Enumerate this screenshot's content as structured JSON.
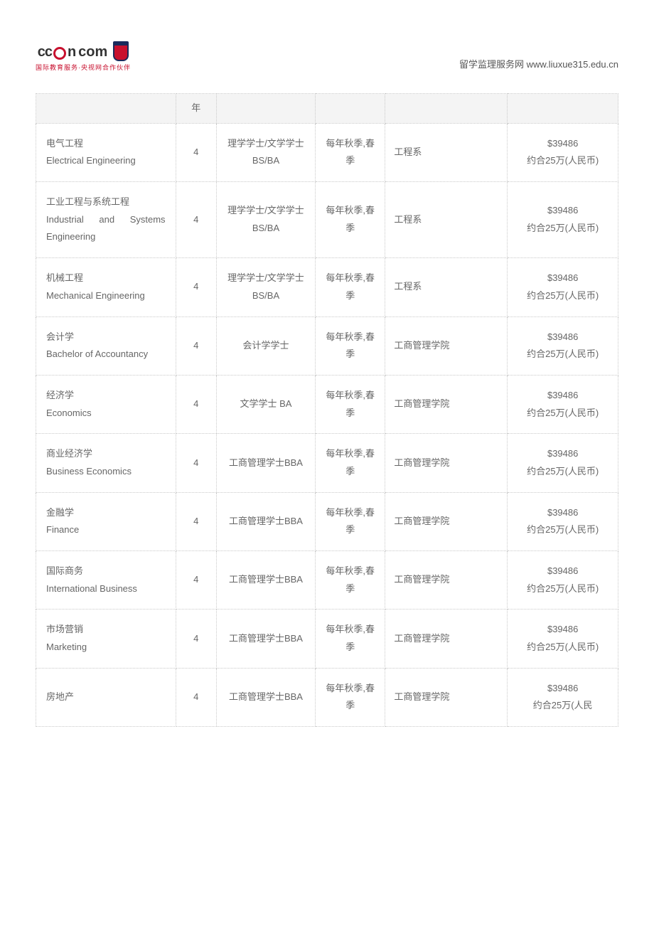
{
  "header": {
    "logo_text_left": "cc",
    "logo_text_mid": "n",
    "logo_text_right": "com",
    "logo_subtext": "国际教育服务·央视网合作伙伴",
    "right_text": "留学监理服务网 www.liuxue315.edu.cn"
  },
  "table": {
    "header_cell": "年",
    "col_widths": [
      "24%",
      "7%",
      "17%",
      "12%",
      "21%",
      "19%"
    ],
    "border_color": "#c9c9c9",
    "header_bg": "#f4f4f4",
    "text_color": "#666666",
    "font_size_pt": 10,
    "rows": [
      {
        "name_cn": "电气工程",
        "name_en": "Electrical Engineering",
        "duration": "4",
        "degree": "理学学士/文学学士 BS/BA",
        "intake": "每年秋季,春季",
        "dept": "工程系",
        "fee_usd": "$39486",
        "fee_rmb": "约合25万(人民币)"
      },
      {
        "name_cn": "工业工程与系统工程",
        "name_en": "Industrial and Systems Engineering",
        "duration": "4",
        "degree": "理学学士/文学学士 BS/BA",
        "intake": "每年秋季,春季",
        "dept": "工程系",
        "fee_usd": "$39486",
        "fee_rmb": "约合25万(人民币)"
      },
      {
        "name_cn": "机械工程",
        "name_en": "Mechanical Engineering",
        "duration": "4",
        "degree": "理学学士/文学学士 BS/BA",
        "intake": "每年秋季,春季",
        "dept": "工程系",
        "fee_usd": "$39486",
        "fee_rmb": "约合25万(人民币)"
      },
      {
        "name_cn": "会计学",
        "name_en": "Bachelor of Accountancy",
        "duration": "4",
        "degree": "会计学学士",
        "intake": "每年秋季,春季",
        "dept": "工商管理学院",
        "fee_usd": "$39486",
        "fee_rmb": "约合25万(人民币)"
      },
      {
        "name_cn": "经济学",
        "name_en": "Economics",
        "duration": "4",
        "degree": "文学学士 BA",
        "intake": "每年秋季,春季",
        "dept": "工商管理学院",
        "fee_usd": "$39486",
        "fee_rmb": "约合25万(人民币)"
      },
      {
        "name_cn": "商业经济学",
        "name_en": "Business Economics",
        "duration": "4",
        "degree": "工商管理学士BBA",
        "intake": "每年秋季,春季",
        "dept": "工商管理学院",
        "fee_usd": "$39486",
        "fee_rmb": "约合25万(人民币)"
      },
      {
        "name_cn": "金融学",
        "name_en": "Finance",
        "duration": "4",
        "degree": "工商管理学士BBA",
        "intake": "每年秋季,春季",
        "dept": "工商管理学院",
        "fee_usd": "$39486",
        "fee_rmb": "约合25万(人民币)"
      },
      {
        "name_cn": "国际商务",
        "name_en": "International Business",
        "duration": "4",
        "degree": "工商管理学士BBA",
        "intake": "每年秋季,春季",
        "dept": "工商管理学院",
        "fee_usd": "$39486",
        "fee_rmb": "约合25万(人民币)"
      },
      {
        "name_cn": "市场营销",
        "name_en": "Marketing",
        "duration": "4",
        "degree": "工商管理学士BBA",
        "intake": "每年秋季,春季",
        "dept": "工商管理学院",
        "fee_usd": "$39486",
        "fee_rmb": "约合25万(人民币)"
      },
      {
        "name_cn": "房地产",
        "name_en": "",
        "duration": "4",
        "degree": "工商管理学士BBA",
        "intake": "每年秋季,春季",
        "dept": "工商管理学院",
        "fee_usd": "$39486",
        "fee_rmb": "约合25万(人民"
      }
    ]
  }
}
